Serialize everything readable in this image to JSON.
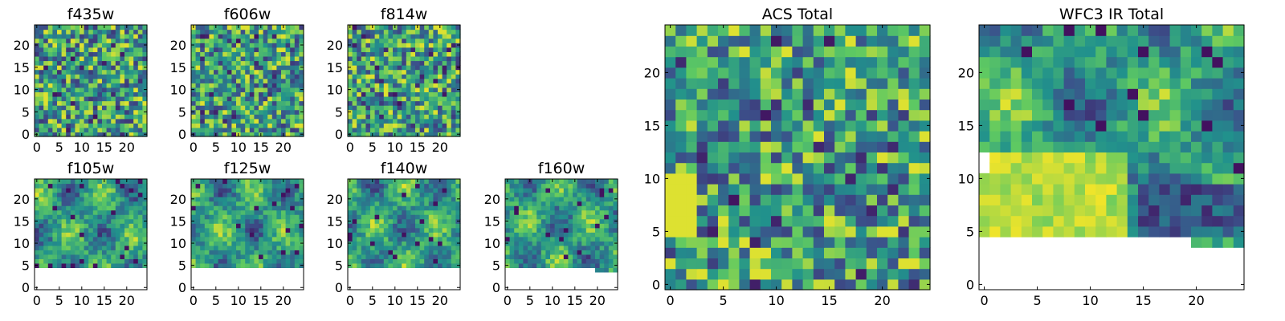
{
  "chart_data": [
    {
      "type": "heatmap",
      "title": "f435w",
      "x_ticks": [
        0,
        5,
        10,
        15,
        20
      ],
      "y_ticks": [
        0,
        5,
        10,
        15,
        20
      ],
      "xlim": [
        0,
        25
      ],
      "ylim": [
        0,
        25
      ],
      "masked_below_y": null,
      "masked_right_cutout": null,
      "texture": "noisy"
    },
    {
      "type": "heatmap",
      "title": "f606w",
      "x_ticks": [
        0,
        5,
        10,
        15,
        20
      ],
      "y_ticks": [
        0,
        5,
        10,
        15,
        20
      ],
      "xlim": [
        0,
        25
      ],
      "ylim": [
        0,
        25
      ],
      "masked_below_y": null,
      "masked_right_cutout": null,
      "texture": "noisy"
    },
    {
      "type": "heatmap",
      "title": "f814w",
      "x_ticks": [
        0,
        5,
        10,
        15,
        20
      ],
      "y_ticks": [
        0,
        5,
        10,
        15,
        20
      ],
      "xlim": [
        0,
        25
      ],
      "ylim": [
        0,
        25
      ],
      "masked_below_y": null,
      "masked_right_cutout": null,
      "texture": "noisy"
    },
    {
      "type": "heatmap",
      "title": "f105w",
      "x_ticks": [
        0,
        5,
        10,
        15,
        20
      ],
      "y_ticks": [
        0,
        5,
        10,
        15,
        20
      ],
      "xlim": [
        0,
        25
      ],
      "ylim": [
        0,
        25
      ],
      "masked_below_y": 5,
      "masked_right_cutout": null,
      "texture": "smooth"
    },
    {
      "type": "heatmap",
      "title": "f125w",
      "x_ticks": [
        0,
        5,
        10,
        15,
        20
      ],
      "y_ticks": [
        0,
        5,
        10,
        15,
        20
      ],
      "xlim": [
        0,
        25
      ],
      "ylim": [
        0,
        25
      ],
      "masked_below_y": 5,
      "masked_right_cutout": null,
      "texture": "smooth"
    },
    {
      "type": "heatmap",
      "title": "f140w",
      "x_ticks": [
        0,
        5,
        10,
        15,
        20
      ],
      "y_ticks": [
        0,
        5,
        10,
        15,
        20
      ],
      "xlim": [
        0,
        25
      ],
      "ylim": [
        0,
        25
      ],
      "masked_below_y": 5,
      "masked_right_cutout": null,
      "texture": "smooth"
    },
    {
      "type": "heatmap",
      "title": "f160w",
      "x_ticks": [
        0,
        5,
        10,
        15,
        20
      ],
      "y_ticks": [
        0,
        5,
        10,
        15,
        20
      ],
      "xlim": [
        0,
        25
      ],
      "ylim": [
        0,
        25
      ],
      "masked_below_y": 5,
      "masked_right_cutout": {
        "x_from": 20,
        "y_to": 4
      },
      "texture": "smooth"
    },
    {
      "type": "heatmap",
      "title": "ACS Total",
      "x_ticks": [
        0,
        5,
        10,
        15,
        20
      ],
      "y_ticks": [
        0,
        5,
        10,
        15,
        20
      ],
      "xlim": [
        0,
        25
      ],
      "ylim": [
        0,
        25
      ],
      "masked_below_y": null,
      "masked_right_cutout": null,
      "texture": "noisy"
    },
    {
      "type": "heatmap",
      "title": "WFC3 IR Total",
      "x_ticks": [
        0,
        5,
        10,
        15,
        20
      ],
      "y_ticks": [
        0,
        5,
        10,
        15,
        20
      ],
      "xlim": [
        0,
        25
      ],
      "ylim": [
        0,
        25
      ],
      "masked_below_y": 5,
      "masked_right_cutout": {
        "x_from": 20,
        "y_to": 4
      },
      "masked_left_strip": {
        "x_to": 1,
        "y_from": 11,
        "y_to": 13
      },
      "texture": "smooth"
    }
  ],
  "colors": {
    "colormap": [
      "#440154",
      "#3b528b",
      "#21918c",
      "#5ec962",
      "#fde725"
    ],
    "axis": "#000000",
    "background": "#ffffff"
  }
}
